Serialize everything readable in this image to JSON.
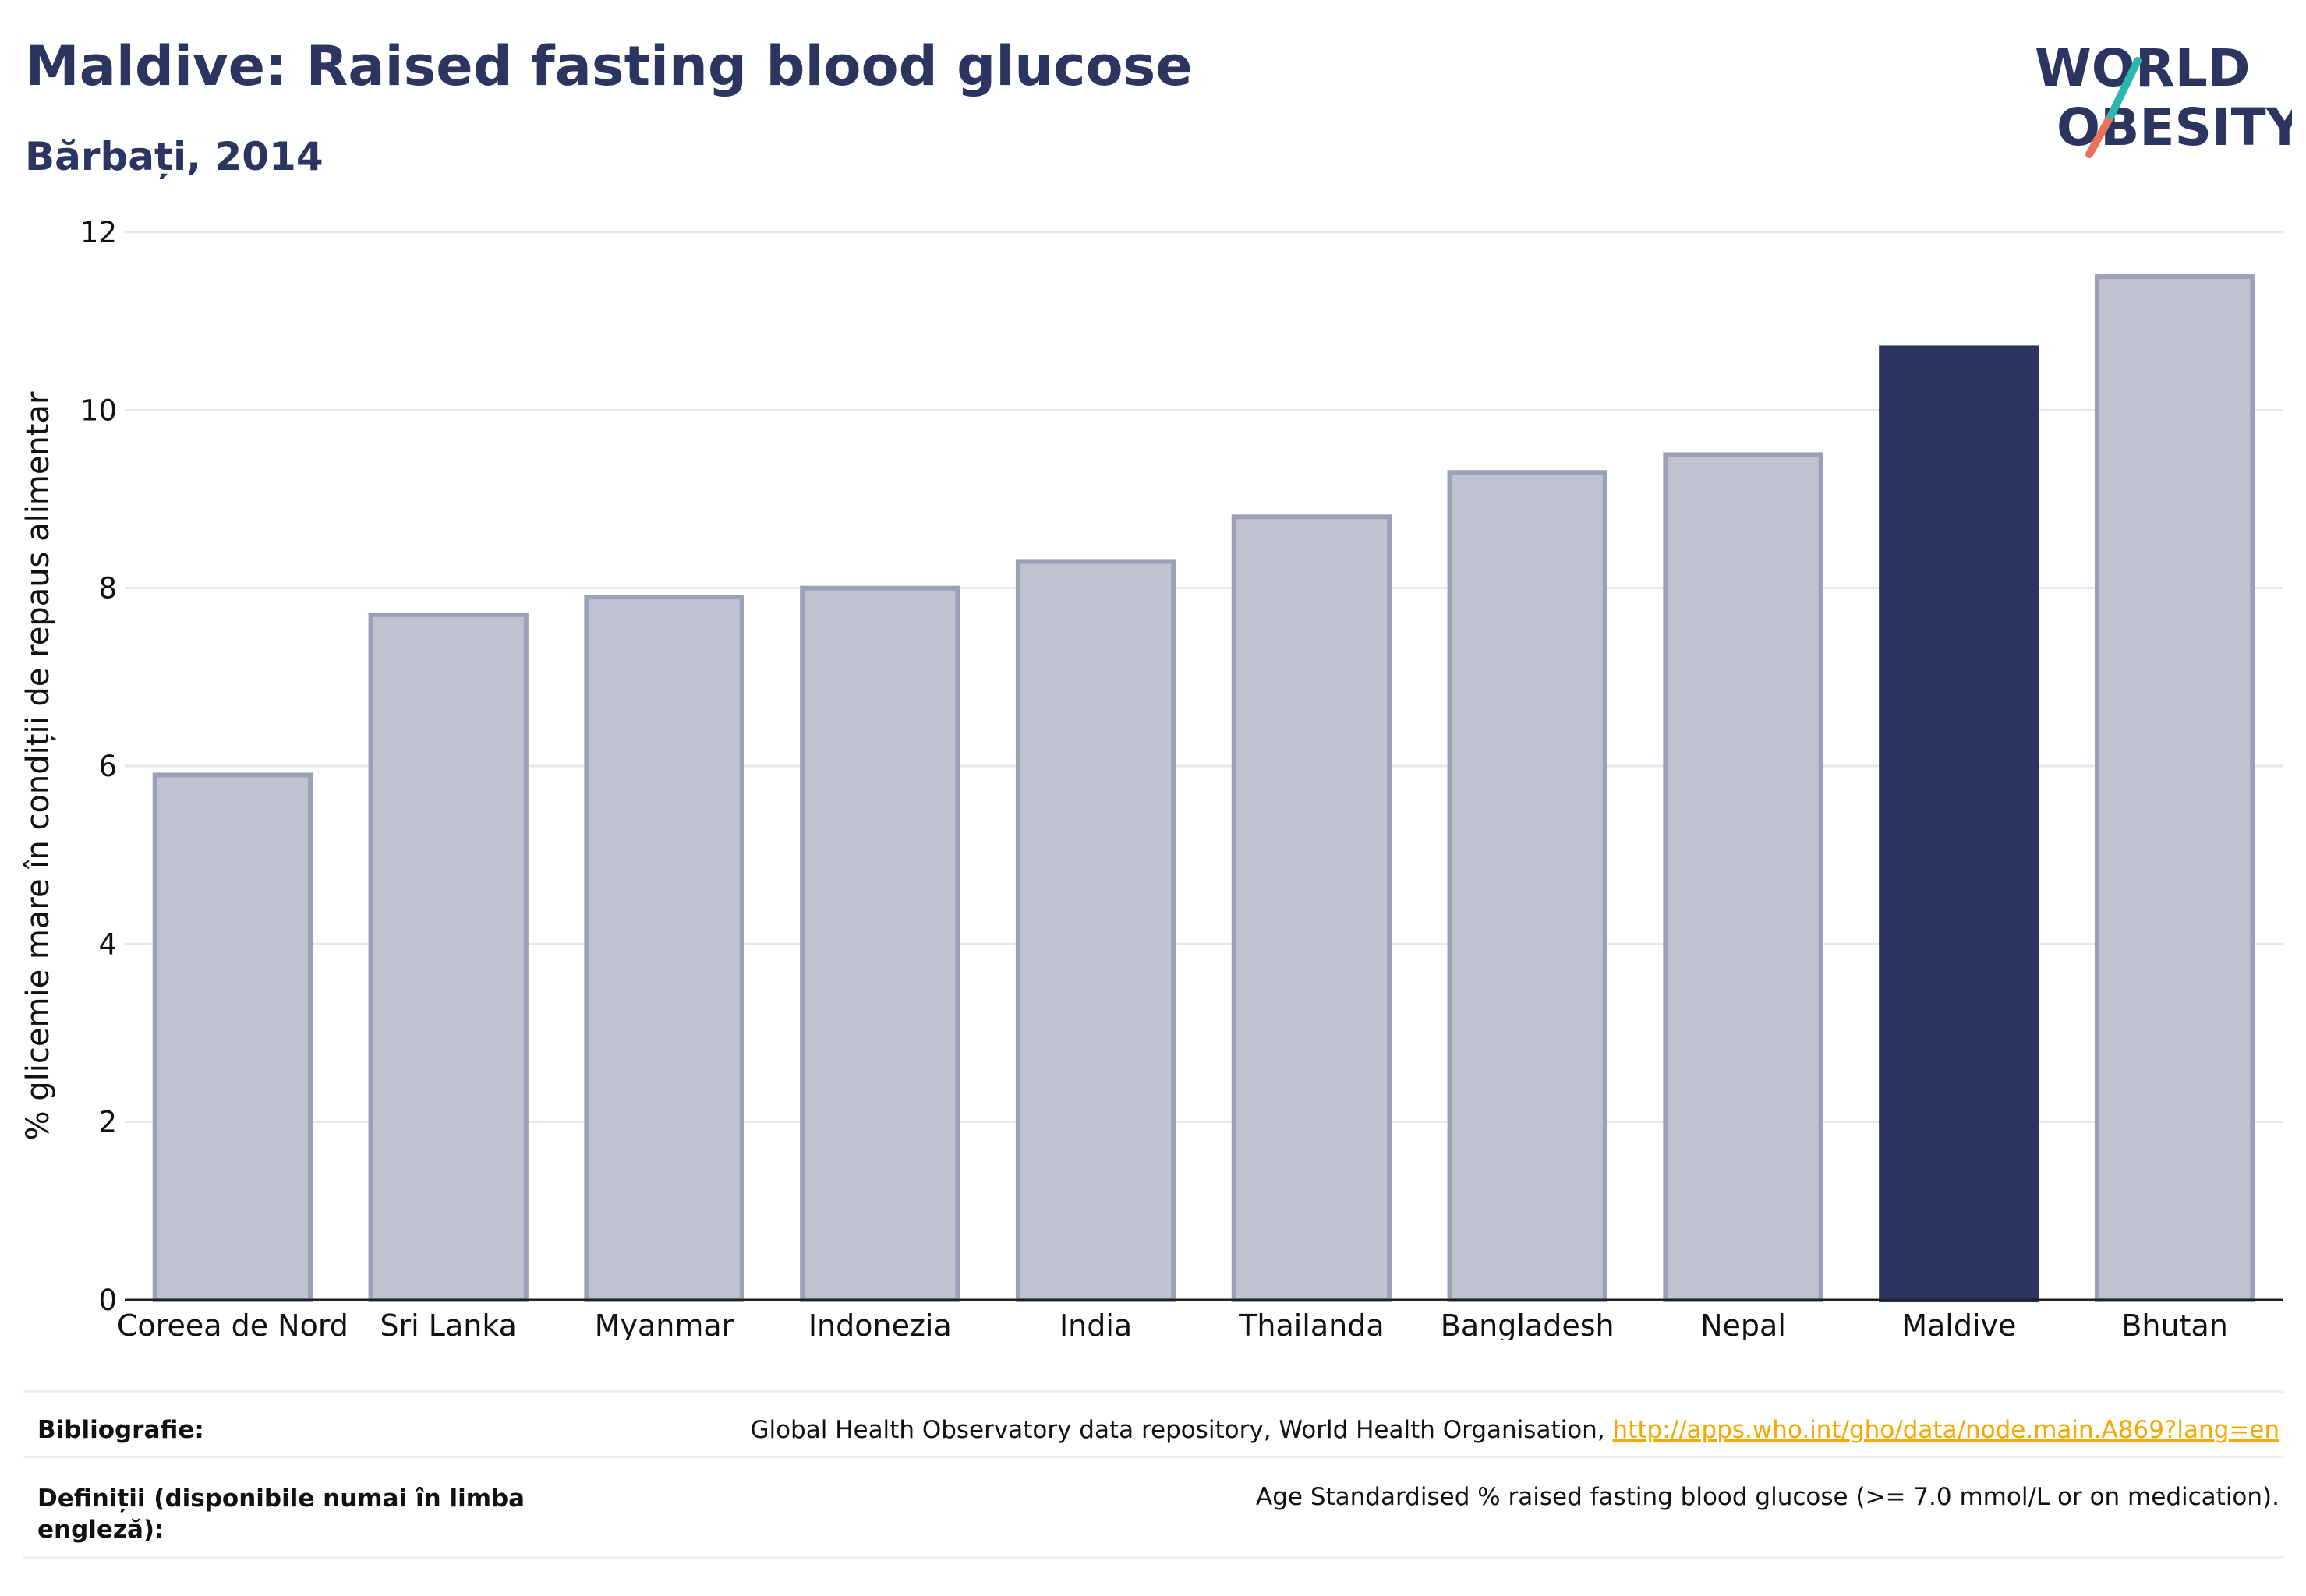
{
  "header": {
    "title": "Maldive: Raised fasting blood glucose",
    "subtitle": "Bărbați, 2014"
  },
  "logo": {
    "line1": "WORLD",
    "line2": "OBESITY",
    "colors": {
      "text": "#2b3560",
      "slash_top": "#2ab7b0",
      "slash_bottom": "#e8735a"
    }
  },
  "chart_data": {
    "type": "bar",
    "categories": [
      "Coreea de Nord",
      "Sri Lanka",
      "Myanmar",
      "Indonezia",
      "India",
      "Thailanda",
      "Bangladesh",
      "Nepal",
      "Maldive",
      "Bhutan"
    ],
    "values": [
      5.9,
      7.7,
      7.9,
      8.0,
      8.3,
      8.8,
      9.3,
      9.5,
      10.7,
      11.5
    ],
    "highlight": "Maldive",
    "ylabel": "% glicemie mare în condiții de repaus alimentar",
    "xlabel": "",
    "ylim": [
      0,
      12
    ],
    "yticks": [
      0,
      2,
      4,
      6,
      8,
      10,
      12
    ],
    "grid": true,
    "colors": {
      "bar": "#bfc3d0",
      "bar_border": "#9aa1b8",
      "highlight": "#2b3560",
      "axis": "#222222",
      "grid": "#e6e8ee"
    }
  },
  "footer": {
    "sources_label": "Bibliografie:",
    "sources_text": "Global Health Observatory data repository, World Health Organisation, ",
    "sources_link": "http://apps.who.int/gho/data/node.main.A869?lang=en",
    "definitions_label": "Definiții (disponibile numai în limba engleză):",
    "definitions_text": "Age Standardised % raised fasting blood glucose (>= 7.0 mmol/L or on medication)."
  }
}
